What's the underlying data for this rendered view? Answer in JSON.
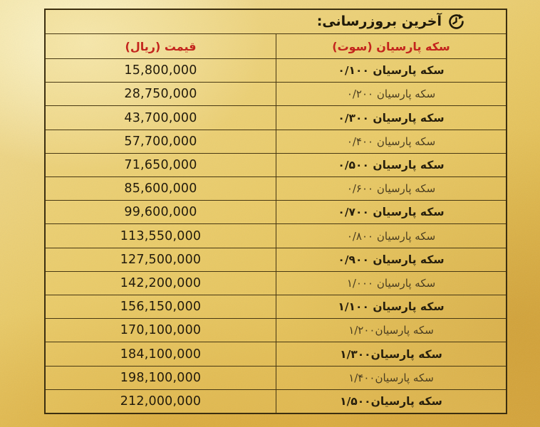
{
  "table": {
    "title": "آخرین بروزرسانی:",
    "title_icon": "refresh-clock-icon",
    "columns": {
      "price": "قیمت (ریال)",
      "coin": "سکه پارسیان (سوت)"
    },
    "rows": [
      {
        "price": "15,800,000",
        "coin": "سکه پارسیان ۰/۱۰۰",
        "bold": true
      },
      {
        "price": "28,750,000",
        "coin": "سکه پارسیان ۰/۲۰۰",
        "bold": false
      },
      {
        "price": "43,700,000",
        "coin": "سکه پارسیان ۰/۳۰۰",
        "bold": true
      },
      {
        "price": "57,700,000",
        "coin": "سکه پارسیان ۰/۴۰۰",
        "bold": false
      },
      {
        "price": "71,650,000",
        "coin": "سکه پارسیان ۰/۵۰۰",
        "bold": true
      },
      {
        "price": "85,600,000",
        "coin": "سکه پارسیان ۰/۶۰۰",
        "bold": false
      },
      {
        "price": "99,600,000",
        "coin": "سکه پارسیان ۰/۷۰۰",
        "bold": true
      },
      {
        "price": "113,550,000",
        "coin": "سکه پارسیان ۰/۸۰۰",
        "bold": false
      },
      {
        "price": "127,500,000",
        "coin": "سکه پارسیان ۰/۹۰۰",
        "bold": true
      },
      {
        "price": "142,200,000",
        "coin": "سکه پارسیان ۱/۰۰۰",
        "bold": false
      },
      {
        "price": "156,150,000",
        "coin": "سکه پارسیان ۱/۱۰۰",
        "bold": true
      },
      {
        "price": "170,100,000",
        "coin": "سکه پارسیان۱/۲۰۰",
        "bold": false
      },
      {
        "price": "184,100,000",
        "coin": "سکه پارسیان۱/۳۰۰",
        "bold": true
      },
      {
        "price": "198,100,000",
        "coin": "سکه پارسیان۱/۴۰۰",
        "bold": false
      },
      {
        "price": "212,000,000",
        "coin": "سکه پارسیان۱/۵۰۰",
        "bold": true
      }
    ]
  },
  "colors": {
    "accent_red": "#c3241d",
    "text_dark": "#1f1909",
    "border_dark": "#3c2f10",
    "gold_background": "#e6c35b",
    "gold_light": "#f2e09a",
    "gold_deep": "#d9a93e"
  },
  "chart_data": {
    "type": "table",
    "title": "آخرین بروزرسانی:",
    "columns": [
      "قیمت (ریال)",
      "سکه پارسیان (سوت)"
    ],
    "rows": [
      [
        "15,800,000",
        "سکه پارسیان ۰/۱۰۰"
      ],
      [
        "28,750,000",
        "سکه پارسیان ۰/۲۰۰"
      ],
      [
        "43,700,000",
        "سکه پارسیان ۰/۳۰۰"
      ],
      [
        "57,700,000",
        "سکه پارسیان ۰/۴۰۰"
      ],
      [
        "71,650,000",
        "سکه پارسیان ۰/۵۰۰"
      ],
      [
        "85,600,000",
        "سکه پارسیان ۰/۶۰۰"
      ],
      [
        "99,600,000",
        "سکه پارسیان ۰/۷۰۰"
      ],
      [
        "113,550,000",
        "سکه پارسیان ۰/۸۰۰"
      ],
      [
        "127,500,000",
        "سکه پارسیان ۰/۹۰۰"
      ],
      [
        "142,200,000",
        "سکه پارسیان ۱/۰۰۰"
      ],
      [
        "156,150,000",
        "سکه پارسیان ۱/۱۰۰"
      ],
      [
        "170,100,000",
        "سکه پارسیان۱/۲۰۰"
      ],
      [
        "184,100,000",
        "سکه پارسیان۱/۳۰۰"
      ],
      [
        "198,100,000",
        "سکه پارسیان۱/۴۰۰"
      ],
      [
        "212,000,000",
        "سکه پارسیان۱/۵۰۰"
      ]
    ],
    "prices_unit": "ریال",
    "weights_unit": "سوت",
    "price_values": [
      15800000,
      28750000,
      43700000,
      57700000,
      71650000,
      85600000,
      99600000,
      113550000,
      127500000,
      142200000,
      156150000,
      170100000,
      184100000,
      198100000,
      212000000
    ]
  }
}
